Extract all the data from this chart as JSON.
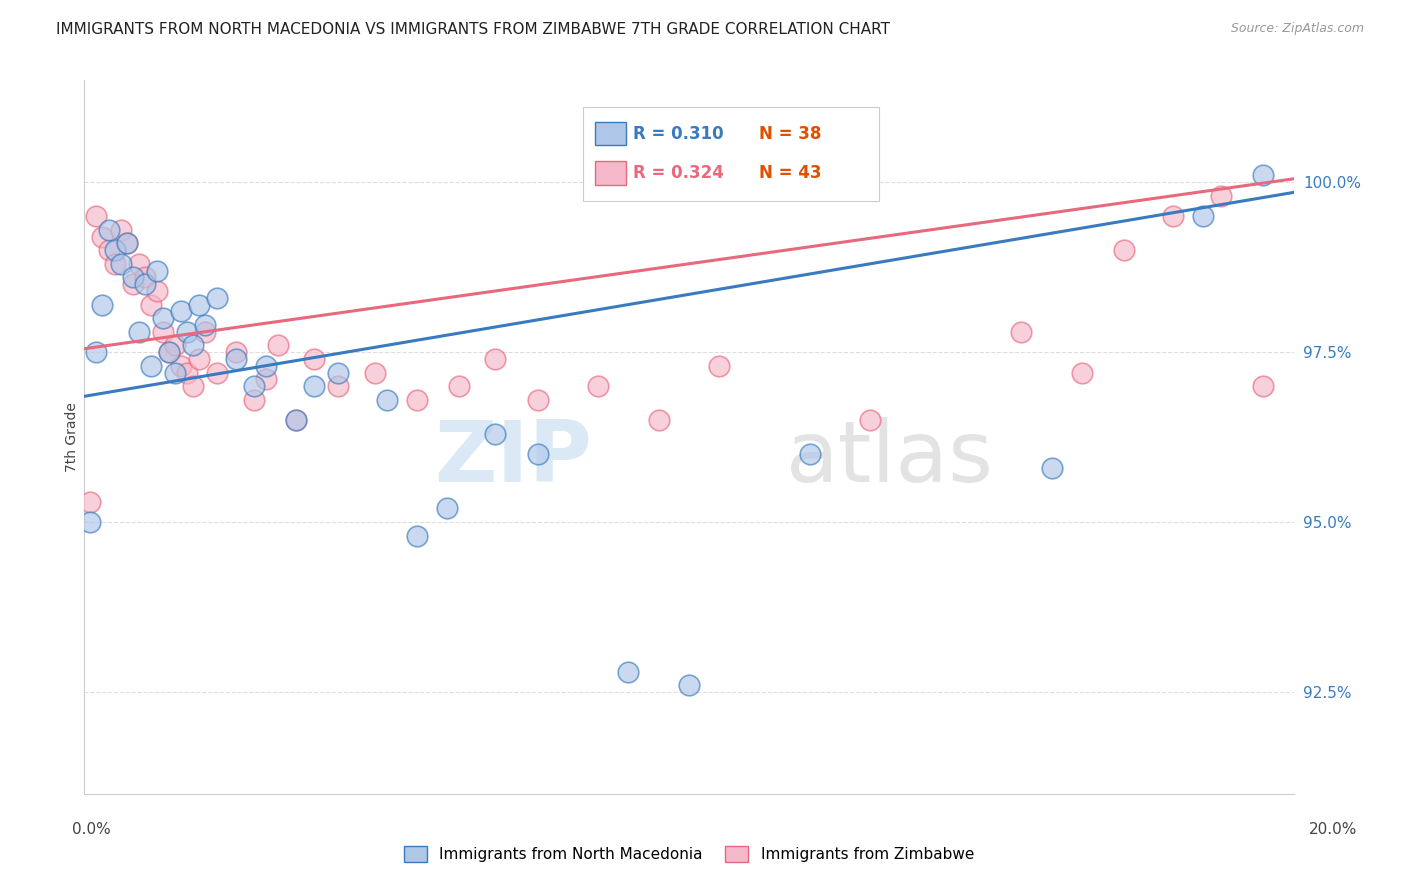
{
  "title": "IMMIGRANTS FROM NORTH MACEDONIA VS IMMIGRANTS FROM ZIMBABWE 7TH GRADE CORRELATION CHART",
  "source": "Source: ZipAtlas.com",
  "ylabel": "7th Grade",
  "yticks": [
    92.5,
    95.0,
    97.5,
    100.0
  ],
  "ytick_labels": [
    "92.5%",
    "95.0%",
    "97.5%",
    "100.0%"
  ],
  "xlim": [
    0.0,
    0.2
  ],
  "ylim": [
    91.0,
    101.5
  ],
  "legend_blue_r": "0.310",
  "legend_blue_n": "38",
  "legend_pink_r": "0.324",
  "legend_pink_n": "43",
  "legend_label_blue": "Immigrants from North Macedonia",
  "legend_label_pink": "Immigrants from Zimbabwe",
  "color_blue": "#aec6e8",
  "color_pink": "#f4b8ca",
  "line_color_blue": "#3a7bbf",
  "line_color_pink": "#e8697d",
  "watermark_zip": "ZIP",
  "watermark_atlas": "atlas",
  "scatter_blue_x": [
    0.001,
    0.002,
    0.003,
    0.004,
    0.005,
    0.006,
    0.007,
    0.008,
    0.009,
    0.01,
    0.011,
    0.012,
    0.013,
    0.014,
    0.015,
    0.016,
    0.017,
    0.018,
    0.019,
    0.02,
    0.022,
    0.025,
    0.028,
    0.03,
    0.035,
    0.038,
    0.042,
    0.05,
    0.055,
    0.06,
    0.068,
    0.075,
    0.09,
    0.1,
    0.12,
    0.16,
    0.185,
    0.195
  ],
  "scatter_blue_y": [
    95.0,
    97.5,
    98.2,
    99.3,
    99.0,
    98.8,
    99.1,
    98.6,
    97.8,
    98.5,
    97.3,
    98.7,
    98.0,
    97.5,
    97.2,
    98.1,
    97.8,
    97.6,
    98.2,
    97.9,
    98.3,
    97.4,
    97.0,
    97.3,
    96.5,
    97.0,
    97.2,
    96.8,
    94.8,
    95.2,
    96.3,
    96.0,
    92.8,
    92.6,
    96.0,
    95.8,
    99.5,
    100.1
  ],
  "scatter_pink_x": [
    0.001,
    0.002,
    0.003,
    0.004,
    0.005,
    0.006,
    0.007,
    0.008,
    0.009,
    0.01,
    0.011,
    0.012,
    0.013,
    0.014,
    0.015,
    0.016,
    0.017,
    0.018,
    0.019,
    0.02,
    0.022,
    0.025,
    0.028,
    0.03,
    0.032,
    0.035,
    0.038,
    0.042,
    0.048,
    0.055,
    0.062,
    0.068,
    0.075,
    0.085,
    0.095,
    0.105,
    0.13,
    0.155,
    0.165,
    0.172,
    0.18,
    0.188,
    0.195
  ],
  "scatter_pink_y": [
    95.3,
    99.5,
    99.2,
    99.0,
    98.8,
    99.3,
    99.1,
    98.5,
    98.8,
    98.6,
    98.2,
    98.4,
    97.8,
    97.5,
    97.6,
    97.3,
    97.2,
    97.0,
    97.4,
    97.8,
    97.2,
    97.5,
    96.8,
    97.1,
    97.6,
    96.5,
    97.4,
    97.0,
    97.2,
    96.8,
    97.0,
    97.4,
    96.8,
    97.0,
    96.5,
    97.3,
    96.5,
    97.8,
    97.2,
    99.0,
    99.5,
    99.8,
    97.0
  ],
  "trendline_blue_x0": 0.0,
  "trendline_blue_y0": 96.85,
  "trendline_blue_x1": 0.2,
  "trendline_blue_y1": 99.85,
  "trendline_pink_x0": 0.0,
  "trendline_pink_y0": 97.55,
  "trendline_pink_x1": 0.2,
  "trendline_pink_y1": 100.05
}
